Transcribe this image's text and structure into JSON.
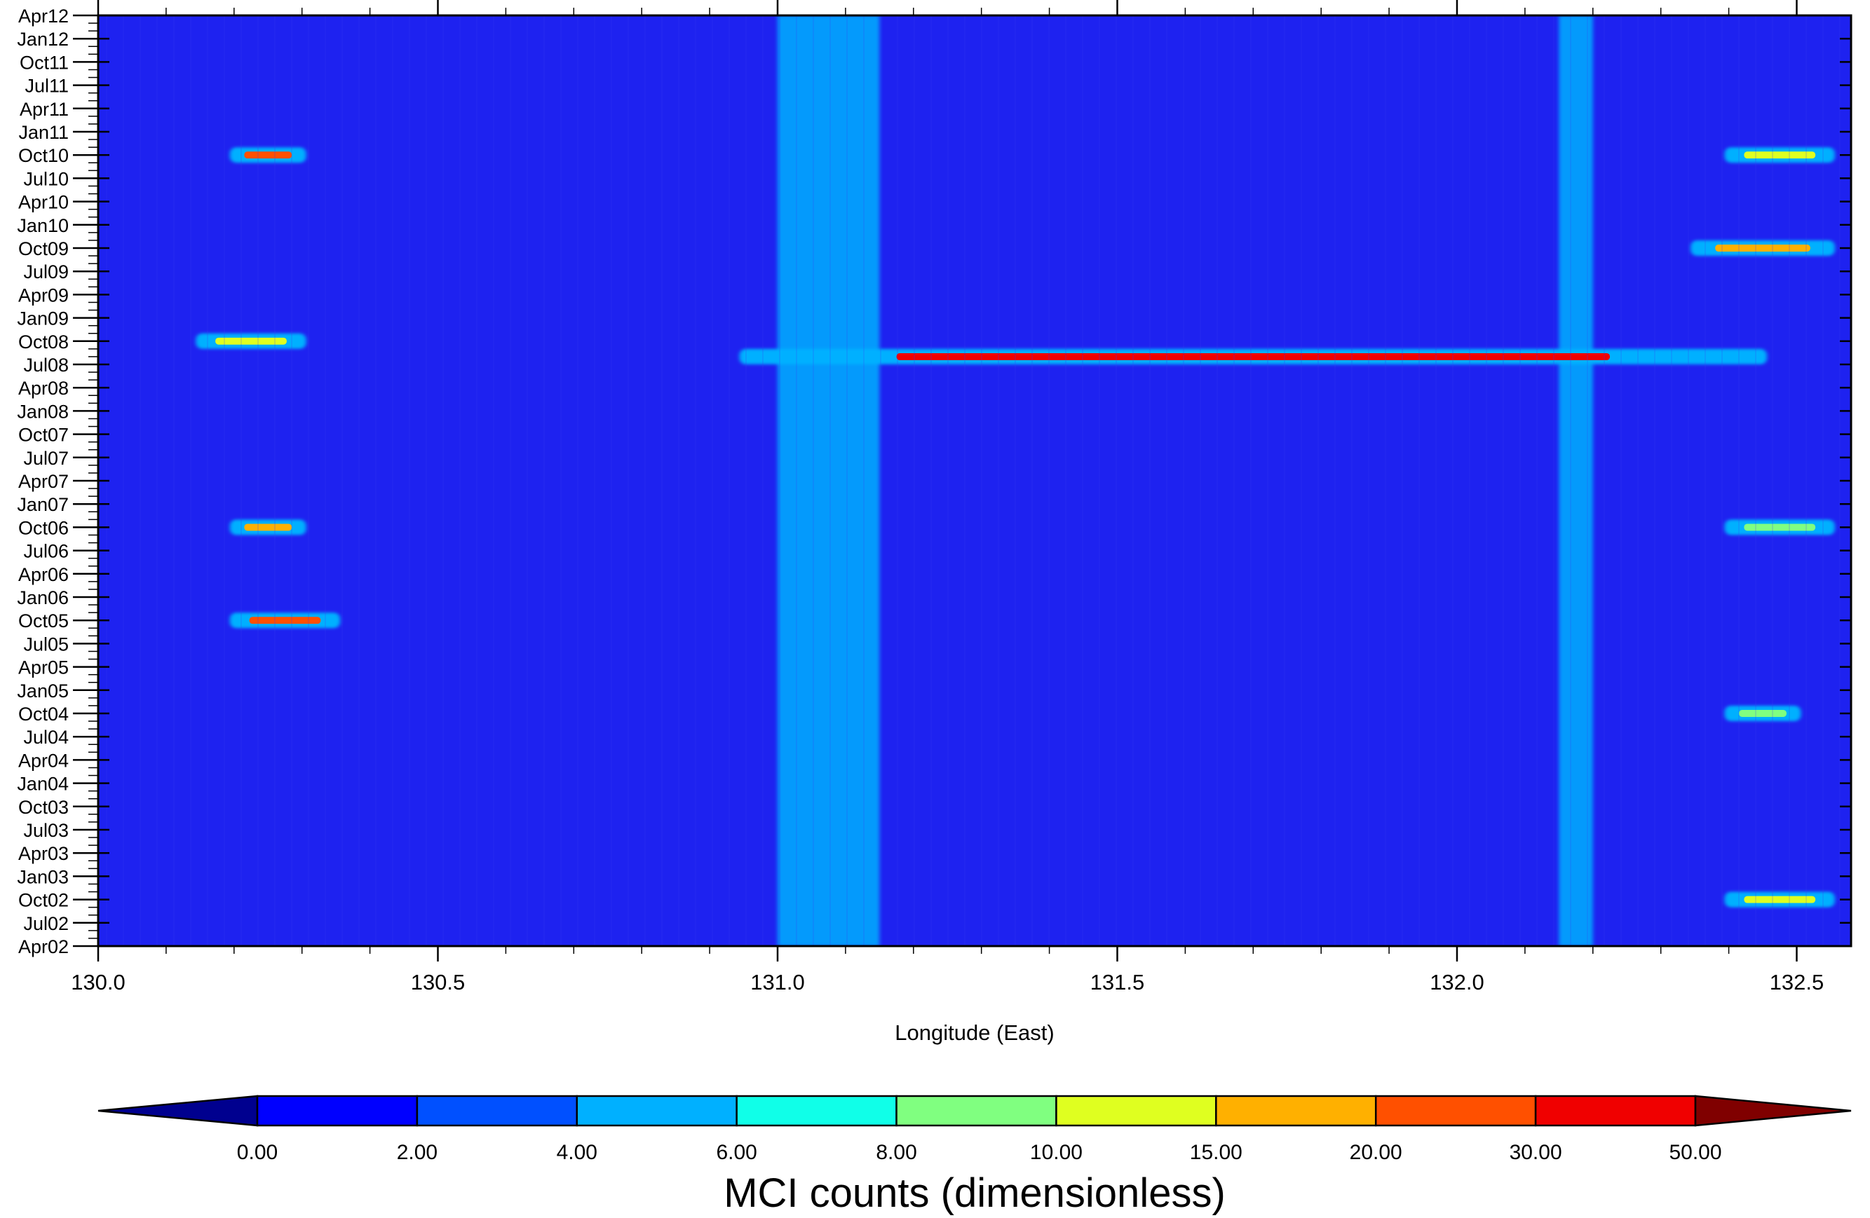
{
  "chart_data": {
    "type": "heatmap",
    "title": "",
    "xlabel": "Longitude (East)",
    "ylabel": "",
    "x_ticks": [
      130.0,
      130.5,
      131.0,
      131.5,
      132.0,
      132.5
    ],
    "x_tick_labels": [
      "130.0",
      "130.5",
      "131.0",
      "131.5",
      "132.0",
      "132.5"
    ],
    "xlim": [
      130.0,
      132.58
    ],
    "y_ticks": [
      "Apr02",
      "Jul02",
      "Oct02",
      "Jan03",
      "Apr03",
      "Jul03",
      "Oct03",
      "Jan04",
      "Apr04",
      "Jul04",
      "Oct04",
      "Jan05",
      "Apr05",
      "Jul05",
      "Oct05",
      "Jan06",
      "Apr06",
      "Jul06",
      "Oct06",
      "Jan07",
      "Apr07",
      "Jul07",
      "Oct07",
      "Jan08",
      "Apr08",
      "Jul08",
      "Oct08",
      "Jan09",
      "Apr09",
      "Jul09",
      "Oct09",
      "Jan10",
      "Apr10",
      "Jul10",
      "Oct10",
      "Jan11",
      "Apr11",
      "Jul11",
      "Oct11",
      "Jan12",
      "Apr12"
    ],
    "ylim": [
      "Apr02",
      "Apr12"
    ],
    "grid": false,
    "colorbar": {
      "label": "MCI counts (dimensionless)",
      "levels": [
        "0.00",
        "2.00",
        "4.00",
        "6.00",
        "8.00",
        "10.00",
        "15.00",
        "20.00",
        "30.00",
        "50.00"
      ],
      "colors": [
        "#00008f",
        "#0000ff",
        "#0050ff",
        "#00b0ff",
        "#10ffe8",
        "#80ff80",
        "#dfff20",
        "#ffb000",
        "#ff5000",
        "#f00000",
        "#800000"
      ],
      "background_color": "#1e22f0"
    },
    "features": [
      {
        "kind": "band",
        "lon": [
          131.0,
          131.15
        ],
        "value": 4,
        "note": "persistent vertical band"
      },
      {
        "kind": "band",
        "lon": [
          132.15,
          132.2
        ],
        "value": 4
      },
      {
        "kind": "streak",
        "time": "Aug08",
        "lon": [
          130.95,
          132.45
        ],
        "peak_lon": 131.95,
        "value": 30
      },
      {
        "kind": "streak",
        "time": "Oct10",
        "lon": [
          130.2,
          130.3
        ],
        "value": 20
      },
      {
        "kind": "streak",
        "time": "Oct09",
        "lon": [
          132.35,
          132.55
        ],
        "value": 15
      },
      {
        "kind": "streak",
        "time": "Oct05",
        "lon": [
          130.2,
          130.35
        ],
        "value": 20
      },
      {
        "kind": "streak",
        "time": "Oct06",
        "lon": [
          130.2,
          130.3
        ],
        "value": 15
      },
      {
        "kind": "streak",
        "time": "Oct08",
        "lon": [
          130.15,
          130.3
        ],
        "value": 10
      },
      {
        "kind": "streak",
        "time": "Oct10",
        "lon": [
          132.4,
          132.55
        ],
        "value": 10
      },
      {
        "kind": "streak",
        "time": "Oct06",
        "lon": [
          132.4,
          132.55
        ],
        "value": 8
      },
      {
        "kind": "streak",
        "time": "Oct02",
        "lon": [
          132.4,
          132.55
        ],
        "value": 10
      },
      {
        "kind": "streak",
        "time": "Oct04",
        "lon": [
          132.4,
          132.5
        ],
        "value": 8
      }
    ]
  }
}
